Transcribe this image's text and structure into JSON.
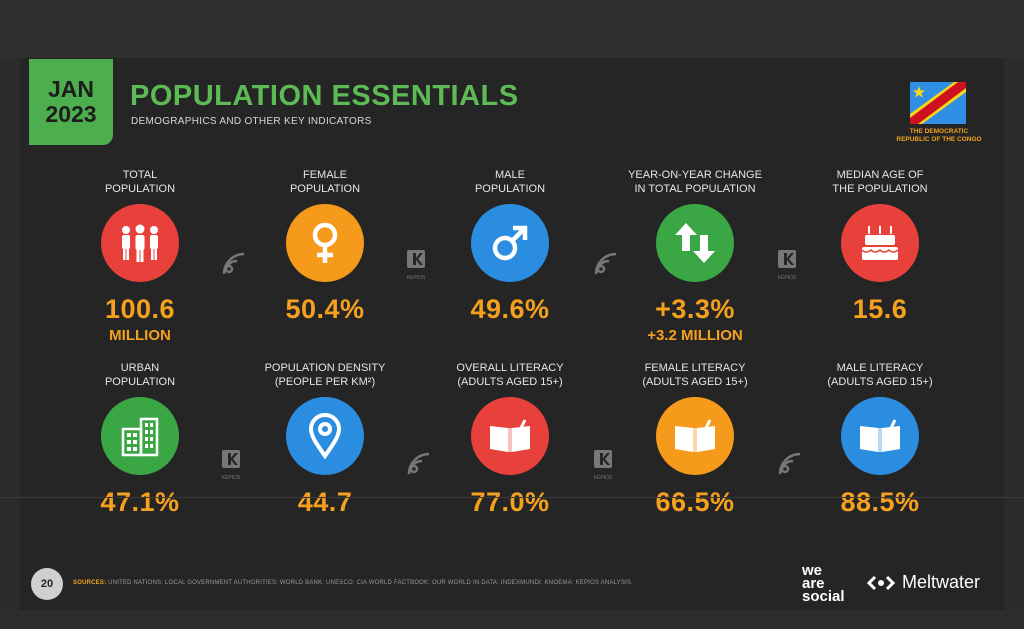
{
  "header": {
    "date_month": "JAN",
    "date_year": "2023",
    "title": "POPULATION ESSENTIALS",
    "subtitle": "DEMOGRAPHICS AND OTHER KEY INDICATORS",
    "country_line1": "THE DEMOCRATIC",
    "country_line2": "REPUBLIC OF THE CONGO"
  },
  "row1": [
    {
      "label1": "TOTAL",
      "label2": "POPULATION",
      "value": "100.6",
      "sub": "MILLION",
      "color": "#e8413c",
      "icon": "people-icon"
    },
    {
      "label1": "FEMALE",
      "label2": "POPULATION",
      "value": "50.4%",
      "sub": "",
      "color": "#f59a1b",
      "icon": "female-icon"
    },
    {
      "label1": "MALE",
      "label2": "POPULATION",
      "value": "49.6%",
      "sub": "",
      "color": "#2b8de0",
      "icon": "male-icon"
    },
    {
      "label1": "YEAR-ON-YEAR CHANGE",
      "label2": "IN TOTAL POPULATION",
      "value": "+3.3%",
      "sub": "+3.2 MILLION",
      "color": "#3aa744",
      "icon": "up-down-arrows-icon"
    },
    {
      "label1": "MEDIAN AGE OF",
      "label2": "THE POPULATION",
      "value": "15.6",
      "sub": "",
      "color": "#e8413c",
      "icon": "cake-icon"
    }
  ],
  "row2": [
    {
      "label1": "URBAN",
      "label2": "POPULATION",
      "value": "47.1%",
      "color": "#3aa744",
      "icon": "building-icon"
    },
    {
      "label1": "POPULATION DENSITY",
      "label2": "(PEOPLE PER KM²)",
      "value": "44.7",
      "color": "#2b8de0",
      "icon": "location-pin-icon"
    },
    {
      "label1": "OVERALL LITERACY",
      "label2": "(ADULTS AGED 15+)",
      "value": "77.0%",
      "color": "#e8413c",
      "icon": "book-icon"
    },
    {
      "label1": "FEMALE LITERACY",
      "label2": "(ADULTS AGED 15+)",
      "value": "66.5%",
      "color": "#f59a1b",
      "icon": "book-icon"
    },
    {
      "label1": "MALE LITERACY",
      "label2": "(ADULTS AGED 15+)",
      "value": "88.5%",
      "color": "#2b8de0",
      "icon": "book-icon"
    }
  ],
  "footer": {
    "page_number": "20",
    "sources_label": "SOURCES:",
    "sources_text": "UNITED NATIONS; LOCAL GOVERNMENT AUTHORITIES; WORLD BANK; UNESCO; CIA WORLD FACTBOOK; OUR WORLD IN DATA; INDEXMUNDI; KNOEMA; KEPIOS ANALYSIS.",
    "logo1_line1": "we",
    "logo1_line2": "are",
    "logo1_line3": "social",
    "logo2": "Meltwater"
  },
  "watermarks": {
    "kepios": "KEPIOS"
  }
}
